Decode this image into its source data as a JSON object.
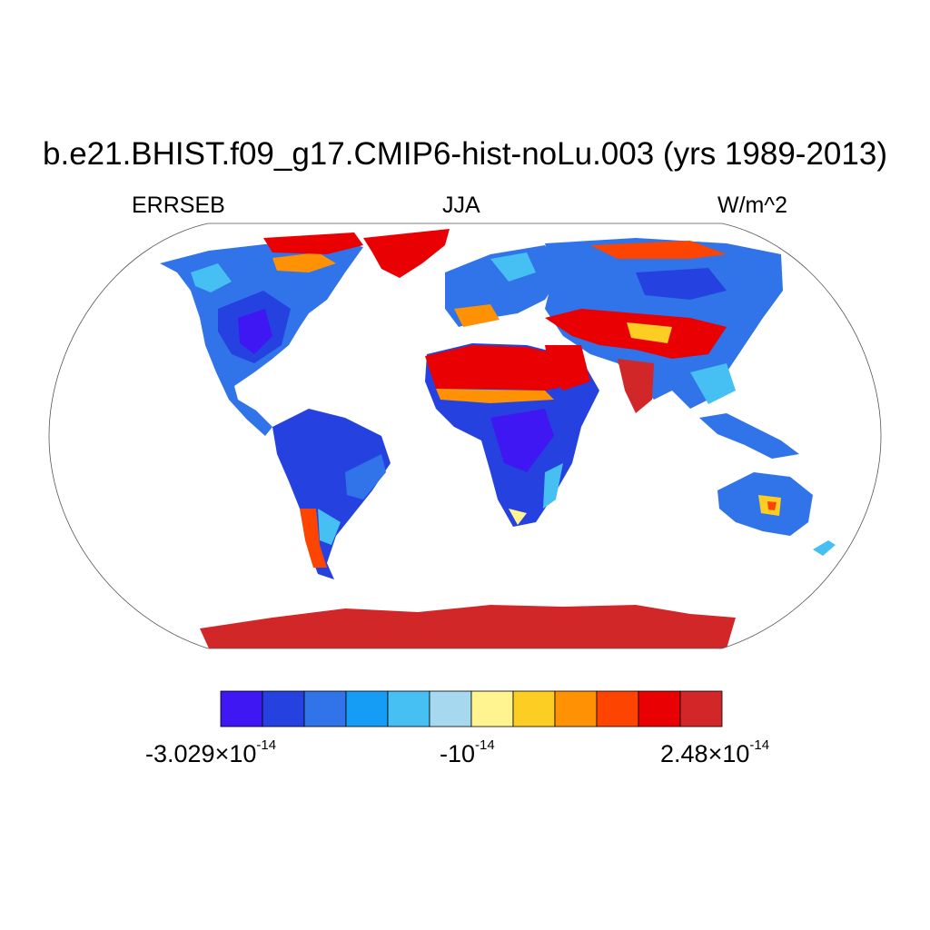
{
  "title": "b.e21.BHIST.f09_g17.CMIP6-hist-noLu.003 (yrs 1989-2013)",
  "subtitle_left": "ERRSEB",
  "subtitle_center": "JJA",
  "subtitle_right": "W/m^2",
  "colorbar": {
    "colors": [
      "#3f17f2",
      "#2542e0",
      "#3173e8",
      "#159cf5",
      "#46bff2",
      "#a6d8ef",
      "#fff48f",
      "#fccd22",
      "#fe9104",
      "#fd4401",
      "#e90003",
      "#d22729"
    ],
    "label_min_mantissa": "-3.029",
    "label_min_exp": "-14",
    "label_mid_base": "-10",
    "label_mid_exp": "-14",
    "label_max_mantissa": "2.48",
    "label_max_exp": "-14",
    "times_symbol": "×",
    "ten": "10"
  },
  "map": {
    "projection": "robinson",
    "ocean_color": "#ffffff",
    "outline_color": "#555555"
  }
}
